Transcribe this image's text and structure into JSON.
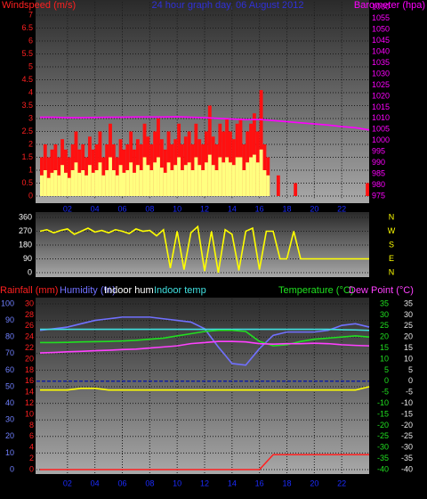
{
  "chart_data": [
    {
      "type": "bar",
      "title": "24 hour graph day, 06 August 2012",
      "ylabel": "Windspeed (m/s)",
      "y2label": "Barometer (hpa)",
      "ycolor": "#ff2020",
      "y2color": "#ff00ff",
      "xlim": [
        0,
        24
      ],
      "xticks": [
        {
          "value": 2,
          "label": "02"
        },
        {
          "value": 4,
          "label": "04"
        },
        {
          "value": 6,
          "label": "06"
        },
        {
          "value": 8,
          "label": "08"
        },
        {
          "value": 10,
          "label": "10"
        },
        {
          "value": 12,
          "label": "12"
        },
        {
          "value": 14,
          "label": "14"
        },
        {
          "value": 16,
          "label": "16"
        },
        {
          "value": 18,
          "label": "18"
        },
        {
          "value": 20,
          "label": "20"
        },
        {
          "value": 22,
          "label": "22"
        }
      ],
      "ylim": [
        0,
        7.3
      ],
      "yticks": [
        0,
        0.5,
        1,
        1.5,
        2,
        2.5,
        3,
        3.5,
        4,
        4.5,
        5,
        5.5,
        6,
        6.5,
        7
      ],
      "y2lim": [
        975,
        1060
      ],
      "y2ticks": [
        975,
        980,
        985,
        990,
        995,
        1000,
        1005,
        1010,
        1015,
        1020,
        1025,
        1030,
        1035,
        1040,
        1045,
        1050,
        1055,
        1060
      ],
      "grid": true,
      "series": [
        {
          "type": "bar",
          "color": "#ff1010",
          "x": [
            0,
            0.25,
            0.5,
            0.75,
            1,
            1.25,
            1.5,
            1.75,
            2,
            2.25,
            2.5,
            2.75,
            3,
            3.25,
            3.5,
            3.75,
            4,
            4.25,
            4.5,
            4.75,
            5,
            5.25,
            5.5,
            5.75,
            6,
            6.25,
            6.5,
            6.75,
            7,
            7.25,
            7.5,
            7.75,
            8,
            8.25,
            8.5,
            8.75,
            9,
            9.25,
            9.5,
            9.75,
            10,
            10.25,
            10.5,
            10.75,
            11,
            11.25,
            11.5,
            11.75,
            12,
            12.25,
            12.5,
            12.75,
            13,
            13.25,
            13.5,
            13.75,
            14,
            14.25,
            14.5,
            14.75,
            15,
            15.25,
            15.5,
            15.75,
            16,
            16.25,
            16.5,
            17.25,
            18.5,
            23.75
          ],
          "values": [
            1.5,
            2,
            1.5,
            1.8,
            2,
            1.5,
            2.2,
            1.8,
            1.5,
            2,
            2.5,
            1.8,
            2,
            1.5,
            2.3,
            1.8,
            2,
            2.5,
            1.5,
            2,
            2.8,
            2,
            1.5,
            2.2,
            1.8,
            2,
            2.5,
            1.8,
            2.2,
            2,
            2.8,
            2.3,
            2,
            2.5,
            3,
            2.2,
            1.8,
            2.5,
            2,
            2.2,
            2.8,
            2,
            2.3,
            2.5,
            2,
            2.8,
            2.2,
            2,
            2.5,
            3.5,
            2.3,
            2,
            2.8,
            2.5,
            3,
            2.5,
            2.2,
            2.8,
            3,
            2,
            2.5,
            2.8,
            3.2,
            2.5,
            4.1,
            2,
            1.5,
            0.8,
            0.5,
            0.5
          ]
        },
        {
          "type": "bar",
          "color": "#ffff80",
          "x": [
            0,
            0.25,
            0.5,
            0.75,
            1,
            1.25,
            1.5,
            1.75,
            2,
            2.25,
            2.5,
            2.75,
            3,
            3.25,
            3.5,
            3.75,
            4,
            4.25,
            4.5,
            4.75,
            5,
            5.25,
            5.5,
            5.75,
            6,
            6.25,
            6.5,
            6.75,
            7,
            7.25,
            7.5,
            7.75,
            8,
            8.25,
            8.5,
            8.75,
            9,
            9.25,
            9.5,
            9.75,
            10,
            10.25,
            10.5,
            10.75,
            11,
            11.25,
            11.5,
            11.75,
            12,
            12.25,
            12.5,
            12.75,
            13,
            13.25,
            13.5,
            13.75,
            14,
            14.25,
            14.5,
            14.75,
            15,
            15.25,
            15.5,
            15.75,
            16,
            16.25,
            16.5
          ],
          "values": [
            0.8,
            1,
            0.7,
            0.9,
            1,
            0.8,
            1.2,
            0.9,
            0.7,
            1,
            1.3,
            0.9,
            1,
            0.8,
            1.2,
            0.9,
            1,
            1.3,
            0.8,
            1,
            1.5,
            1,
            0.8,
            1.2,
            0.9,
            1,
            1.3,
            0.9,
            1.2,
            1,
            1.5,
            1.2,
            1,
            1.3,
            1.5,
            1.1,
            0.9,
            1.3,
            1,
            1.2,
            1.5,
            1,
            1.2,
            1.3,
            1,
            1.5,
            1.2,
            1,
            1.3,
            1.6,
            1.2,
            1,
            1.5,
            1.3,
            1.5,
            1.3,
            1.2,
            1.5,
            1.5,
            1,
            1.3,
            1.5,
            1.6,
            1.3,
            1.8,
            1,
            0.8
          ]
        },
        {
          "type": "line",
          "axis": "y2",
          "color": "#ff00ff",
          "x": [
            0,
            1,
            2,
            3,
            4,
            5,
            6,
            7,
            8,
            9,
            10,
            11,
            12,
            13,
            14,
            15,
            16,
            17,
            18,
            19,
            20,
            21,
            22,
            23,
            24
          ],
          "values": [
            1010.5,
            1010.5,
            1010.3,
            1010.3,
            1010.4,
            1010.5,
            1010.5,
            1010.6,
            1010.6,
            1010.6,
            1010.7,
            1010.5,
            1010.3,
            1010,
            1009.7,
            1009.4,
            1009.5,
            1009,
            1008.5,
            1008,
            1007.5,
            1007,
            1006.3,
            1005.8,
            1004.8
          ]
        }
      ]
    },
    {
      "type": "line",
      "ycolor": "#ffffff",
      "y2color": "#ffff00",
      "xlim": [
        0,
        24
      ],
      "ylim": [
        0,
        360
      ],
      "yticks": [
        0,
        90,
        180,
        270,
        360
      ],
      "y2lim": [
        0,
        360
      ],
      "y2ticks": [
        {
          "value": 0,
          "label": "N"
        },
        {
          "value": 90,
          "label": "E"
        },
        {
          "value": 180,
          "label": "S"
        },
        {
          "value": 270,
          "label": "W"
        },
        {
          "value": 360,
          "label": "N"
        }
      ],
      "grid": true,
      "series": [
        {
          "type": "line",
          "color": "#ffff00",
          "x": [
            0,
            0.5,
            1,
            1.5,
            2,
            2.5,
            3,
            3.5,
            4,
            4.5,
            5,
            5.5,
            6,
            6.5,
            7,
            7.5,
            8,
            8.5,
            9,
            9.5,
            10,
            10.5,
            11,
            11.5,
            12,
            12.5,
            13,
            13.5,
            14,
            14.5,
            15,
            15.5,
            16,
            16.5,
            17,
            17.5,
            18,
            18.5,
            19,
            19.5,
            20,
            20.5,
            21,
            21.5,
            22,
            22.5,
            23,
            23.5,
            24
          ],
          "values": [
            270,
            280,
            260,
            275,
            285,
            250,
            270,
            290,
            265,
            275,
            260,
            280,
            270,
            255,
            285,
            270,
            275,
            240,
            280,
            30,
            270,
            20,
            260,
            300,
            10,
            270,
            0,
            280,
            250,
            15,
            270,
            290,
            20,
            270,
            270,
            90,
            90,
            270,
            90,
            90,
            90,
            90,
            90,
            90,
            90,
            90,
            90,
            90,
            90
          ]
        }
      ]
    },
    {
      "type": "line",
      "xlim": [
        0,
        24
      ],
      "xticks": [
        {
          "value": 2,
          "label": "02"
        },
        {
          "value": 4,
          "label": "04"
        },
        {
          "value": 6,
          "label": "06"
        },
        {
          "value": 8,
          "label": "08"
        },
        {
          "value": 10,
          "label": "10"
        },
        {
          "value": 12,
          "label": "12"
        },
        {
          "value": 14,
          "label": "14"
        },
        {
          "value": 16,
          "label": "16"
        },
        {
          "value": 18,
          "label": "18"
        },
        {
          "value": 20,
          "label": "20"
        },
        {
          "value": 22,
          "label": "22"
        }
      ],
      "ycolor": "#7080ff",
      "y2color": "#ff2020",
      "y3color": "#20e020",
      "y4color": "#e8e8e8",
      "ylim": [
        0,
        100
      ],
      "yticks": [
        0,
        10,
        20,
        30,
        40,
        50,
        60,
        70,
        80,
        90,
        100
      ],
      "y2lim": [
        0,
        30
      ],
      "y2ticks": [
        0,
        2,
        4,
        6,
        8,
        10,
        12,
        14,
        16,
        18,
        20,
        22,
        24,
        26,
        28,
        30
      ],
      "y3lim": [
        -40,
        35
      ],
      "y3ticks": [
        -40,
        -35,
        -30,
        -25,
        -20,
        -15,
        -10,
        -5,
        0,
        5,
        10,
        15,
        20,
        25,
        30,
        35
      ],
      "y4lim": [
        -40,
        35
      ],
      "y4ticks": [
        -40,
        -35,
        -30,
        -25,
        -20,
        -15,
        -10,
        -5,
        0,
        5,
        10,
        15,
        20,
        25,
        30,
        35
      ],
      "grid": true,
      "x": [
        0,
        1,
        2,
        3,
        4,
        5,
        6,
        7,
        8,
        9,
        10,
        11,
        12,
        13,
        14,
        15,
        16,
        17,
        18,
        19,
        20,
        21,
        22,
        23,
        24
      ],
      "series": [
        {
          "name": "Rainfall (mm)",
          "axis": "y2",
          "color": "#ff2020",
          "values": [
            0,
            0,
            0,
            0,
            0,
            0,
            0,
            0,
            0,
            0,
            0,
            0,
            0,
            0,
            0,
            0,
            0,
            2.7,
            2.7,
            2.7,
            2.7,
            2.7,
            2.7,
            2.7,
            2.7
          ]
        },
        {
          "name": "Humidity (%)",
          "axis": "y",
          "color": "#7070ff",
          "values": [
            84,
            85,
            86,
            88,
            90,
            91,
            92,
            92,
            92,
            91,
            90,
            89,
            85,
            74,
            64,
            63,
            73,
            81,
            83,
            83,
            83,
            84,
            87,
            88,
            86
          ]
        },
        {
          "name": "Indoor hum",
          "axis": "y",
          "color": "#ffff00",
          "label_color": "#ffffff",
          "values": [
            48,
            48,
            48,
            49,
            49,
            48,
            48,
            48,
            48,
            48,
            48,
            48,
            48,
            48,
            48,
            48,
            48,
            48,
            48,
            48,
            48,
            48,
            48,
            48,
            50
          ]
        },
        {
          "name": "Indoor temp",
          "axis": "y3",
          "color": "#40e0e0",
          "values": [
            23.5,
            23.5,
            23.5,
            23.5,
            23.5,
            23.5,
            23.5,
            23.5,
            23.5,
            23.5,
            23.5,
            23.5,
            23.5,
            23.5,
            23.5,
            23.5,
            23.5,
            23.5,
            23.5,
            23.5,
            23.5,
            23.5,
            23.3,
            23.2,
            23
          ]
        },
        {
          "name": "Temperature (°C)",
          "axis": "y3",
          "color": "#20e020",
          "values": [
            17.5,
            17.5,
            17.6,
            17.8,
            17.9,
            18,
            18.2,
            18.5,
            19,
            19.5,
            20.5,
            21.5,
            22.5,
            23,
            23,
            22.5,
            18,
            16,
            16.5,
            18,
            19,
            19.5,
            20,
            20.5,
            20
          ]
        },
        {
          "name": "Dew Point (°C)",
          "axis": "y4",
          "color": "#ff40ff",
          "values": [
            12.8,
            13,
            13.3,
            13.5,
            13.8,
            14,
            14.3,
            14.5,
            15,
            15.5,
            16,
            17,
            17.5,
            18,
            18,
            17.8,
            17,
            16.8,
            17,
            17,
            17.2,
            17,
            16.5,
            16.2,
            16
          ]
        }
      ]
    }
  ]
}
